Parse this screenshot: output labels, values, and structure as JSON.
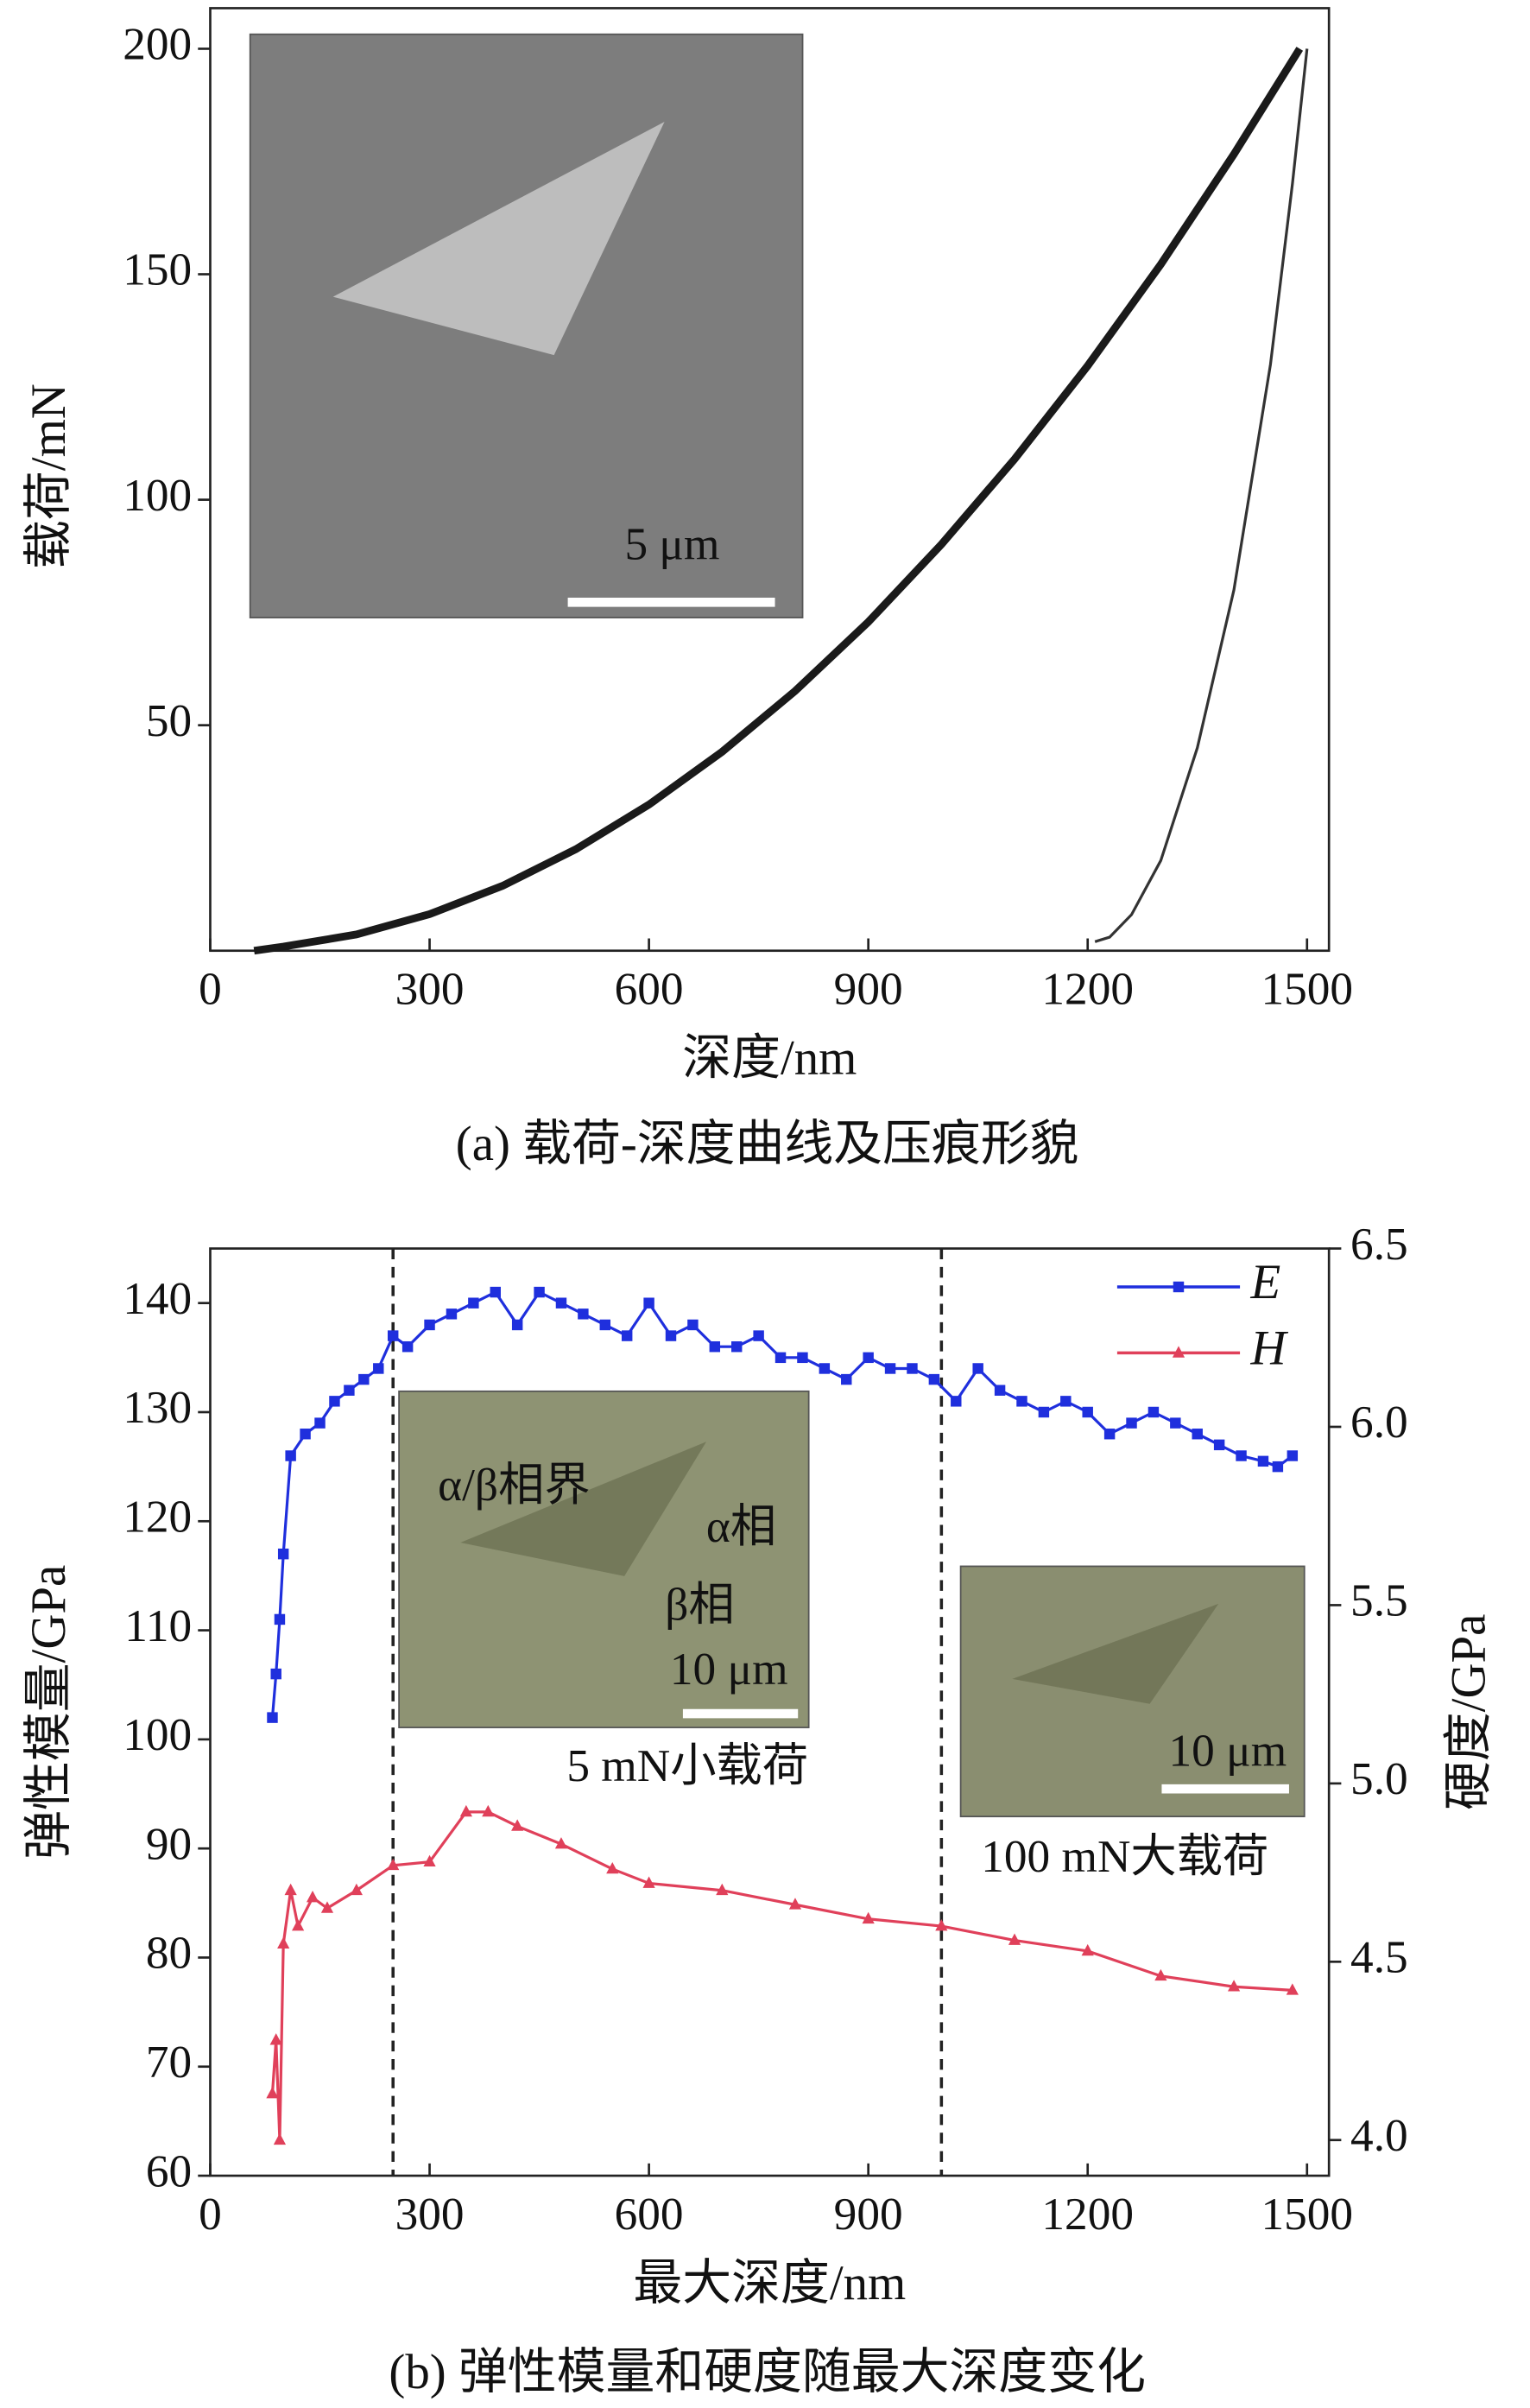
{
  "chart_data": [
    {
      "type": "line",
      "caption": "(a) 载荷-深度曲线及压痕形貌",
      "xlabel": "深度/nm",
      "ylabel": "载荷/mN",
      "xlim": [
        0,
        1530
      ],
      "ylim": [
        0,
        209
      ],
      "xticks": [
        0,
        300,
        600,
        900,
        1200,
        1500
      ],
      "yticks": [
        50,
        100,
        150,
        200
      ],
      "series": [
        {
          "color": "#1a1a1a",
          "x": [
            60,
            100,
            200,
            300,
            400,
            500,
            600,
            700,
            800,
            900,
            1000,
            1100,
            1200,
            1300,
            1400,
            1490
          ],
          "values": [
            0,
            0.9,
            3.6,
            8.1,
            14.4,
            22.5,
            32.4,
            44.1,
            57.6,
            72.9,
            90.1,
            109,
            129.7,
            152.2,
            176.6,
            200
          ]
        },
        {
          "color": "#333333",
          "x": [
            1500,
            1480,
            1450,
            1400,
            1350,
            1300,
            1260,
            1230,
            1210
          ],
          "values": [
            200,
            170,
            130,
            80,
            45,
            20,
            8,
            3,
            2
          ]
        }
      ],
      "annotations": [
        "5 μm"
      ]
    },
    {
      "type": "line",
      "caption": "(b) 弹性模量和硬度随最大深度变化",
      "xlabel": "最大深度/nm",
      "ylabel": "弹性模量/GPa",
      "y2label": "硬度/GPa",
      "xlim": [
        0,
        1530
      ],
      "ylim": [
        60,
        145
      ],
      "y2lim": [
        3.9,
        6.5
      ],
      "xticks": [
        0,
        300,
        600,
        900,
        1200,
        1500
      ],
      "yticks": [
        60,
        70,
        80,
        90,
        100,
        110,
        120,
        130,
        140
      ],
      "y2ticks": [
        {
          "value": 4,
          "label": "4.0"
        },
        4.5,
        {
          "value": 5,
          "label": "5.0"
        },
        5.5,
        {
          "value": 6,
          "label": "6.0"
        },
        6.5
      ],
      "vlines": [
        250,
        1000
      ],
      "series": [
        {
          "name": "E",
          "color": "#1f2fdd",
          "marker": "square",
          "x": [
            85,
            90,
            95,
            100,
            110,
            130,
            150,
            170,
            190,
            210,
            230,
            250,
            270,
            300,
            330,
            360,
            390,
            420,
            450,
            480,
            510,
            540,
            570,
            600,
            630,
            660,
            690,
            720,
            750,
            780,
            810,
            840,
            870,
            900,
            930,
            960,
            990,
            1020,
            1050,
            1080,
            1110,
            1140,
            1170,
            1200,
            1230,
            1260,
            1290,
            1320,
            1350,
            1380,
            1410,
            1440,
            1460,
            1480
          ],
          "values": [
            102,
            106,
            111,
            117,
            126,
            128,
            129,
            131,
            132,
            133,
            134,
            137,
            136,
            138,
            139,
            140,
            141,
            138,
            141,
            140,
            139,
            138,
            137,
            140,
            137,
            138,
            136,
            136,
            137,
            135,
            135,
            134,
            133,
            135,
            134,
            134,
            133,
            131,
            134,
            132,
            131,
            130,
            131,
            130,
            128,
            129,
            130,
            129,
            128,
            127,
            126,
            125.5,
            125,
            126
          ]
        },
        {
          "name": "H",
          "color": "#e0405a",
          "marker": "triangle",
          "axis": "y2",
          "x": [
            85,
            90,
            95,
            100,
            110,
            120,
            140,
            160,
            200,
            250,
            300,
            350,
            380,
            420,
            480,
            550,
            600,
            700,
            800,
            900,
            1000,
            1100,
            1200,
            1300,
            1400,
            1480
          ],
          "values": [
            4.13,
            4.28,
            4,
            4.55,
            4.7,
            4.6,
            4.68,
            4.65,
            4.7,
            4.77,
            4.78,
            4.92,
            4.92,
            4.88,
            4.83,
            4.76,
            4.72,
            4.7,
            4.66,
            4.62,
            4.6,
            4.56,
            4.53,
            4.46,
            4.43,
            4.42
          ]
        }
      ],
      "annotations": [
        "α/β相界",
        "α相",
        "β相",
        "10 μm",
        "5 mN小载荷",
        "10 μm",
        "100 mN大载荷"
      ]
    }
  ]
}
